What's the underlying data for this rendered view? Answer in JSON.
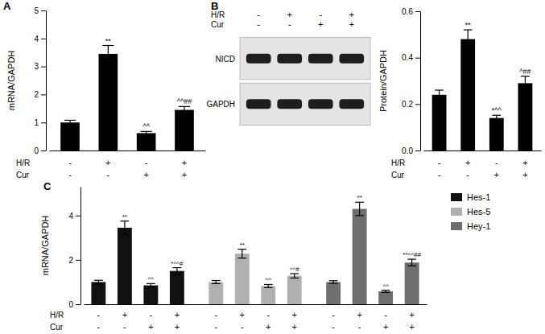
{
  "chart_data": [
    {
      "type": "bar",
      "panel": "A",
      "y_label": "mRNA/GAPDH",
      "categories": [
        null,
        null,
        null,
        null
      ],
      "values": [
        1.0,
        3.45,
        0.62,
        1.45
      ],
      "errors": [
        0.08,
        0.3,
        0.06,
        0.12
      ],
      "annotations": [
        null,
        "**",
        "^^",
        "^^##"
      ],
      "color": "#000000",
      "ylim": [
        0,
        5
      ],
      "yticks": [
        0,
        1,
        2,
        3,
        4,
        5
      ],
      "conditions": [
        {
          "name": "H/R",
          "signs": [
            "-",
            "+",
            "-",
            "+"
          ]
        },
        {
          "name": "Cur",
          "signs": [
            "-",
            "-",
            "+",
            "+"
          ]
        }
      ]
    },
    {
      "type": "bar",
      "panel": "B",
      "y_label": "Protein/GAPDH",
      "categories": [
        null,
        null,
        null,
        null
      ],
      "values": [
        0.24,
        0.48,
        0.14,
        0.29
      ],
      "errors": [
        0.02,
        0.04,
        0.012,
        0.03
      ],
      "annotations": [
        null,
        "**",
        "*^^",
        "^##"
      ],
      "color": "#000000",
      "ylim": [
        0,
        0.6
      ],
      "yticks": [
        {
          "value": 0,
          "label": "0.0"
        },
        0.2,
        0.4,
        0.6
      ],
      "conditions": [
        {
          "name": "H/R",
          "signs": [
            "-",
            "+",
            "-",
            "+"
          ]
        },
        {
          "name": "Cur",
          "signs": [
            "-",
            "-",
            "+",
            "+"
          ]
        }
      ],
      "blot": {
        "rows": [
          "NICD",
          "GAPDH"
        ],
        "conditions": [
          {
            "name": "H/R",
            "signs": [
              "-",
              "+",
              "-",
              "+"
            ]
          },
          {
            "name": "Cur",
            "signs": [
              "-",
              "-",
              "+",
              "+"
            ]
          }
        ]
      }
    },
    {
      "type": "bar",
      "panel": "C",
      "y_label": "mRNA/GAPDH",
      "categories": [
        null,
        null,
        null,
        null
      ],
      "series": [
        {
          "name": "Hes-1",
          "color": "#111111",
          "values": [
            1.0,
            3.45,
            0.85,
            1.5
          ],
          "errors": [
            0.08,
            0.3,
            0.08,
            0.15
          ],
          "annotations": [
            null,
            "**",
            "^^",
            "*^^#"
          ]
        },
        {
          "name": "Hes-5",
          "color": "#b0b0b0",
          "values": [
            1.0,
            2.28,
            0.82,
            1.28
          ],
          "errors": [
            0.07,
            0.2,
            0.07,
            0.1
          ],
          "annotations": [
            null,
            "**",
            "^^",
            "^^#"
          ]
        },
        {
          "name": "Hey-1",
          "color": "#6e6e6e",
          "values": [
            1.0,
            4.3,
            0.58,
            1.88
          ],
          "errors": [
            0.06,
            0.3,
            0.05,
            0.15
          ],
          "annotations": [
            null,
            "**",
            "^^",
            "**^^##"
          ]
        }
      ],
      "legend": "right",
      "ylim": [
        0,
        5.3
      ],
      "yticks": [
        0,
        2,
        4
      ],
      "conditions": [
        {
          "name": "H/R",
          "signs": [
            "-",
            "+",
            "-",
            "+"
          ]
        },
        {
          "name": "Cur",
          "signs": [
            "-",
            "-",
            "+",
            "+"
          ]
        }
      ]
    }
  ]
}
